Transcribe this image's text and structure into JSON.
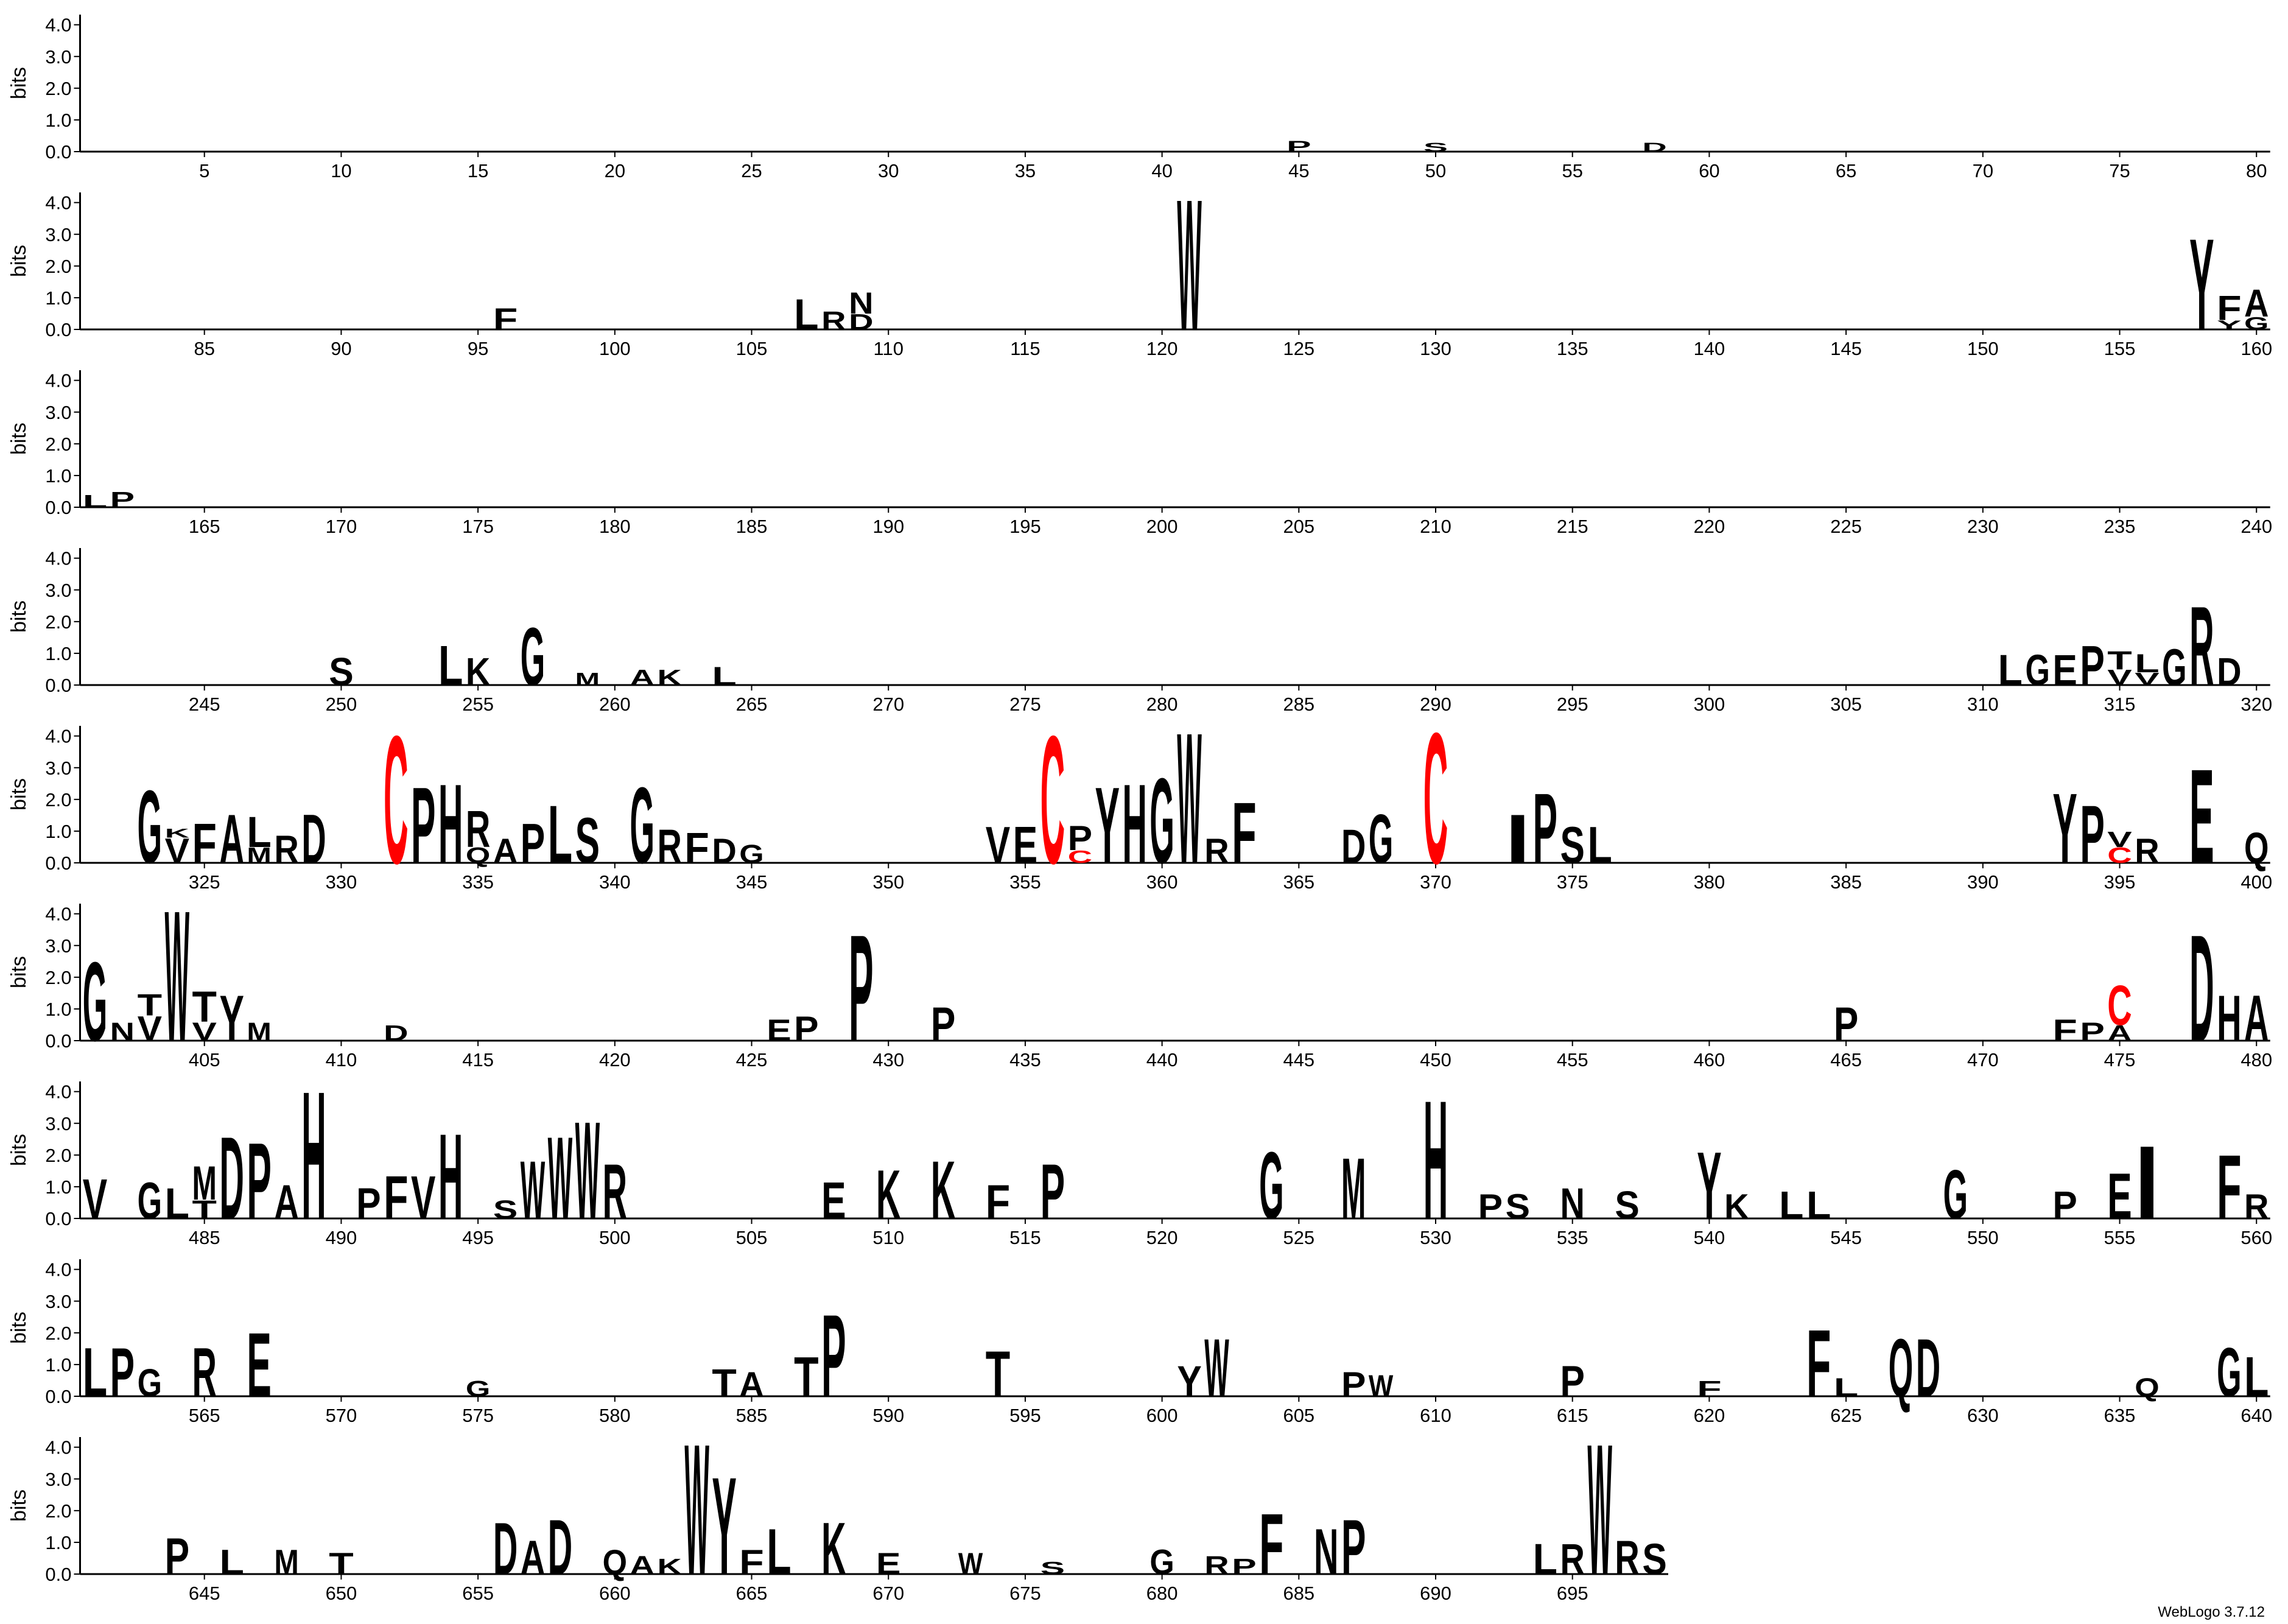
{
  "chart_data": [
    {
      "type": "logo",
      "ylabel": "bits",
      "xlim": [
        0.5,
        80.5
      ],
      "xticks": [
        5,
        10,
        15,
        20,
        25,
        30,
        35,
        40,
        45,
        50,
        55,
        60,
        65,
        70,
        75,
        80
      ],
      "ylim": [
        0,
        4.32
      ],
      "yticks": [
        {
          "value": 0,
          "label": "0.0"
        },
        {
          "value": 1,
          "label": "1.0"
        },
        {
          "value": 2,
          "label": "2.0"
        },
        {
          "value": 3,
          "label": "3.0"
        },
        {
          "value": 4,
          "label": "4.0"
        }
      ],
      "color": "#000000",
      "letter_colors": {
        "C": "#ff0000"
      },
      "x": [
        45,
        50,
        58
      ],
      "letters": [
        "P",
        "S",
        "D"
      ],
      "values": [
        0.35,
        0.3,
        0.3
      ]
    },
    {
      "type": "logo",
      "ylabel": "bits",
      "xlim": [
        80.5,
        160.5
      ],
      "xticks": [
        85,
        90,
        95,
        100,
        105,
        110,
        115,
        120,
        125,
        130,
        135,
        140,
        145,
        150,
        155,
        160
      ],
      "ylim": [
        0,
        4.32
      ],
      "yticks": [
        {
          "value": 0,
          "label": "0.0"
        },
        {
          "value": 1,
          "label": "1.0"
        },
        {
          "value": 2,
          "label": "2.0"
        },
        {
          "value": 3,
          "label": "3.0"
        },
        {
          "value": 4,
          "label": "4.0"
        }
      ],
      "color": "#000000",
      "letter_colors": {
        "C": "#ff0000"
      },
      "x": [
        96,
        107,
        108,
        109,
        109,
        121,
        158,
        159,
        159,
        160,
        160
      ],
      "letters": [
        "F",
        "L",
        "R",
        "D",
        "N",
        "W",
        "Y",
        "Y",
        "F",
        "G",
        "A"
      ],
      "values": [
        0.7,
        1.0,
        0.6,
        0.5,
        0.7,
        4.3,
        3.0,
        0.3,
        0.8,
        0.4,
        0.9
      ]
    },
    {
      "type": "logo",
      "ylabel": "bits",
      "xlim": [
        160.5,
        240.5
      ],
      "xticks": [
        165,
        170,
        175,
        180,
        185,
        190,
        195,
        200,
        205,
        210,
        215,
        220,
        225,
        230,
        235,
        240
      ],
      "ylim": [
        0,
        4.32
      ],
      "yticks": [
        {
          "value": 0,
          "label": "0.0"
        },
        {
          "value": 1,
          "label": "1.0"
        },
        {
          "value": 2,
          "label": "2.0"
        },
        {
          "value": 3,
          "label": "3.0"
        },
        {
          "value": 4,
          "label": "4.0"
        }
      ],
      "color": "#000000",
      "letter_colors": {
        "C": "#ff0000"
      },
      "x": [
        161,
        162
      ],
      "letters": [
        "L",
        "P"
      ],
      "values": [
        0.4,
        0.5
      ]
    },
    {
      "type": "logo",
      "ylabel": "bits",
      "xlim": [
        240.5,
        320.5
      ],
      "xticks": [
        245,
        250,
        255,
        260,
        265,
        270,
        275,
        280,
        285,
        290,
        295,
        300,
        305,
        310,
        315,
        320
      ],
      "ylim": [
        0,
        4.32
      ],
      "yticks": [
        {
          "value": 0,
          "label": "0.0"
        },
        {
          "value": 1,
          "label": "1.0"
        },
        {
          "value": 2,
          "label": "2.0"
        },
        {
          "value": 3,
          "label": "3.0"
        },
        {
          "value": 4,
          "label": "4.0"
        }
      ],
      "color": "#000000",
      "letter_colors": {
        "C": "#ff0000"
      },
      "x": [
        250,
        254,
        255,
        257,
        259,
        261,
        262,
        264,
        311,
        312,
        313,
        314,
        315,
        315,
        316,
        316,
        317,
        318,
        319
      ],
      "letters": [
        "S",
        "L",
        "K",
        "G",
        "M",
        "A",
        "K",
        "L",
        "L",
        "G",
        "E",
        "P",
        "V",
        "T",
        "V",
        "L",
        "G",
        "R",
        "D"
      ],
      "values": [
        0.9,
        1.3,
        0.9,
        1.9,
        0.4,
        0.5,
        0.5,
        0.6,
        1.0,
        1.0,
        1.0,
        1.3,
        0.5,
        0.6,
        0.4,
        0.6,
        1.2,
        2.6,
        0.9
      ]
    },
    {
      "type": "logo",
      "ylabel": "bits",
      "xlim": [
        320.5,
        400.5
      ],
      "xticks": [
        325,
        330,
        335,
        340,
        345,
        350,
        355,
        360,
        365,
        370,
        375,
        380,
        385,
        390,
        395,
        400
      ],
      "ylim": [
        0,
        4.32
      ],
      "yticks": [
        {
          "value": 0,
          "label": "0.0"
        },
        {
          "value": 1,
          "label": "1.0"
        },
        {
          "value": 2,
          "label": "2.0"
        },
        {
          "value": 3,
          "label": "3.0"
        },
        {
          "value": 4,
          "label": "4.0"
        }
      ],
      "color": "#000000",
      "letter_colors": {
        "C": "#ff0000"
      },
      "x": [
        323,
        324,
        324,
        325,
        326,
        327,
        327,
        328,
        329,
        332,
        333,
        334,
        335,
        335,
        336,
        337,
        338,
        339,
        341,
        342,
        343,
        344,
        345,
        354,
        355,
        356,
        357,
        357,
        358,
        359,
        360,
        361,
        362,
        363,
        367,
        368,
        370,
        373,
        374,
        375,
        376,
        393,
        394,
        395,
        395,
        396,
        398,
        400
      ],
      "letters": [
        "G",
        "V",
        "K",
        "F",
        "A",
        "M",
        "L",
        "R",
        "D",
        "C",
        "P",
        "H",
        "Q",
        "R",
        "A",
        "P",
        "L",
        "S",
        "G",
        "R",
        "F",
        "D",
        "G",
        "V",
        "E",
        "C",
        "C",
        "P",
        "Y",
        "H",
        "G",
        "W",
        "R",
        "F",
        "D",
        "G",
        "C",
        "I",
        "P",
        "S",
        "L",
        "Y",
        "P",
        "C",
        "V",
        "R",
        "E",
        "Q"
      ],
      "values": [
        2.4,
        0.8,
        0.3,
        1.3,
        1.6,
        0.5,
        1.0,
        0.9,
        1.6,
        4.2,
        2.5,
        2.6,
        0.5,
        1.2,
        0.8,
        1.3,
        1.9,
        1.5,
        2.5,
        1.1,
        1.0,
        0.8,
        0.6,
        1.2,
        1.2,
        4.2,
        0.4,
        0.8,
        2.5,
        2.6,
        2.8,
        4.3,
        0.8,
        2.0,
        1.1,
        1.6,
        4.3,
        1.6,
        2.3,
        1.2,
        1.2,
        2.3,
        1.9,
        0.5,
        0.5,
        0.8,
        3.1,
        1.0
      ]
    },
    {
      "type": "logo",
      "ylabel": "bits",
      "xlim": [
        400.5,
        480.5
      ],
      "xticks": [
        405,
        410,
        415,
        420,
        425,
        430,
        435,
        440,
        445,
        450,
        455,
        460,
        465,
        470,
        475,
        480
      ],
      "ylim": [
        0,
        4.32
      ],
      "yticks": [
        {
          "value": 0,
          "label": "0.0"
        },
        {
          "value": 1,
          "label": "1.0"
        },
        {
          "value": 2,
          "label": "2.0"
        },
        {
          "value": 3,
          "label": "3.0"
        },
        {
          "value": 4,
          "label": "4.0"
        }
      ],
      "color": "#000000",
      "letter_colors": {
        "C": "#ff0000"
      },
      "x": [
        401,
        402,
        403,
        403,
        404,
        405,
        405,
        406,
        407,
        412,
        426,
        427,
        429,
        432,
        465,
        473,
        474,
        475,
        475,
        478,
        479,
        480
      ],
      "letters": [
        "G",
        "N",
        "V",
        "T",
        "W",
        "V",
        "T",
        "Y",
        "M",
        "D",
        "E",
        "P",
        "P",
        "P",
        "P",
        "F",
        "P",
        "A",
        "C",
        "D",
        "H",
        "A"
      ],
      "values": [
        2.6,
        0.6,
        0.8,
        0.7,
        4.3,
        0.6,
        1.0,
        1.5,
        0.6,
        0.5,
        0.7,
        0.8,
        3.5,
        1.1,
        1.1,
        0.7,
        0.6,
        0.5,
        1.3,
        3.5,
        1.5,
        1.5
      ]
    },
    {
      "type": "logo",
      "ylabel": "bits",
      "xlim": [
        480.5,
        560.5
      ],
      "xticks": [
        485,
        490,
        495,
        500,
        505,
        510,
        515,
        520,
        525,
        530,
        535,
        540,
        545,
        550,
        555,
        560
      ],
      "ylim": [
        0,
        4.32
      ],
      "yticks": [
        {
          "value": 0,
          "label": "0.0"
        },
        {
          "value": 1,
          "label": "1.0"
        },
        {
          "value": 2,
          "label": "2.0"
        },
        {
          "value": 3,
          "label": "3.0"
        },
        {
          "value": 4,
          "label": "4.0"
        }
      ],
      "color": "#000000",
      "letter_colors": {
        "C": "#ff0000"
      },
      "x": [
        481,
        483,
        484,
        485,
        485,
        486,
        487,
        488,
        489,
        491,
        492,
        493,
        494,
        496,
        497,
        498,
        499,
        500,
        508,
        510,
        512,
        514,
        516,
        524,
        527,
        530,
        532,
        533,
        535,
        537,
        540,
        541,
        543,
        544,
        549,
        553,
        555,
        556,
        559,
        560
      ],
      "letters": [
        "V",
        "G",
        "L",
        "T",
        "M",
        "D",
        "P",
        "A",
        "H",
        "P",
        "F",
        "V",
        "H",
        "S",
        "W",
        "W",
        "W",
        "R",
        "E",
        "K",
        "K",
        "F",
        "P",
        "G",
        "M",
        "H",
        "P",
        "S",
        "N",
        "S",
        "Y",
        "K",
        "L",
        "L",
        "G",
        "P",
        "E",
        "I",
        "F",
        "R"
      ],
      "values": [
        1.3,
        1.2,
        1.0,
        0.6,
        1.1,
        2.7,
        2.5,
        1.1,
        4.2,
        1.0,
        1.4,
        1.4,
        2.8,
        0.6,
        1.9,
        2.7,
        3.2,
        1.8,
        1.2,
        1.6,
        1.9,
        1.1,
        1.8,
        2.2,
        2.0,
        3.9,
        0.8,
        0.8,
        1.0,
        0.9,
        2.2,
        0.8,
        0.9,
        0.9,
        1.6,
        0.9,
        1.5,
        2.4,
        2.1,
        0.8
      ]
    },
    {
      "type": "logo",
      "ylabel": "bits",
      "xlim": [
        560.5,
        640.5
      ],
      "xticks": [
        565,
        570,
        575,
        580,
        585,
        590,
        595,
        600,
        605,
        610,
        615,
        620,
        625,
        630,
        635,
        640
      ],
      "ylim": [
        0,
        4.32
      ],
      "yticks": [
        {
          "value": 0,
          "label": "0.0"
        },
        {
          "value": 1,
          "label": "1.0"
        },
        {
          "value": 2,
          "label": "2.0"
        },
        {
          "value": 3,
          "label": "3.0"
        },
        {
          "value": 4,
          "label": "4.0"
        }
      ],
      "color": "#000000",
      "letter_colors": {
        "C": "#ff0000"
      },
      "x": [
        561,
        562,
        563,
        565,
        567,
        575,
        584,
        585,
        587,
        588,
        594,
        601,
        602,
        607,
        608,
        615,
        620,
        624,
        625,
        627,
        628,
        636,
        639,
        640
      ],
      "letters": [
        "L",
        "P",
        "G",
        "R",
        "E",
        "G",
        "T",
        "A",
        "T",
        "P",
        "T",
        "Y",
        "W",
        "P",
        "W",
        "P",
        "F",
        "F",
        "L",
        "Q",
        "D",
        "Q",
        "G",
        "L"
      ],
      "values": [
        1.6,
        1.6,
        0.9,
        1.6,
        2.1,
        0.5,
        0.9,
        0.8,
        1.3,
        2.7,
        1.5,
        1.0,
        1.9,
        0.8,
        0.7,
        1.0,
        0.5,
        2.2,
        0.6,
        1.9,
        1.9,
        0.6,
        1.6,
        1.3
      ]
    },
    {
      "type": "logo",
      "ylabel": "bits",
      "xlim": [
        640.5,
        698.5
      ],
      "xticks": [
        645,
        650,
        655,
        660,
        665,
        670,
        675,
        680,
        685,
        690,
        695
      ],
      "ylim": [
        0,
        4.32
      ],
      "yticks": [
        {
          "value": 0,
          "label": "0.0"
        },
        {
          "value": 1,
          "label": "1.0"
        },
        {
          "value": 2,
          "label": "2.0"
        },
        {
          "value": 3,
          "label": "3.0"
        },
        {
          "value": 4,
          "label": "4.0"
        }
      ],
      "color": "#000000",
      "letter_colors": {
        "C": "#ff0000"
      },
      "x": [
        644,
        646,
        648,
        650,
        656,
        657,
        658,
        660,
        661,
        662,
        663,
        664,
        665,
        666,
        668,
        670,
        673,
        676,
        680,
        682,
        683,
        684,
        686,
        687,
        694,
        695,
        696,
        697,
        698
      ],
      "letters": [
        "P",
        "L",
        "M",
        "T",
        "D",
        "A",
        "D",
        "Q",
        "A",
        "K",
        "W",
        "Y",
        "F",
        "L",
        "K",
        "E",
        "W",
        "S",
        "G",
        "R",
        "P",
        "F",
        "N",
        "P",
        "L",
        "R",
        "W",
        "R",
        "S"
      ],
      "values": [
        1.2,
        0.8,
        0.8,
        0.7,
        1.7,
        1.1,
        1.8,
        0.8,
        0.6,
        0.5,
        4.3,
        3.2,
        0.8,
        1.5,
        1.7,
        0.7,
        0.7,
        0.4,
        0.8,
        0.6,
        0.5,
        2.0,
        1.5,
        1.8,
        1.0,
        1.0,
        4.3,
        1.1,
        1.0
      ]
    }
  ],
  "footer": "WebLogo 3.7.12"
}
